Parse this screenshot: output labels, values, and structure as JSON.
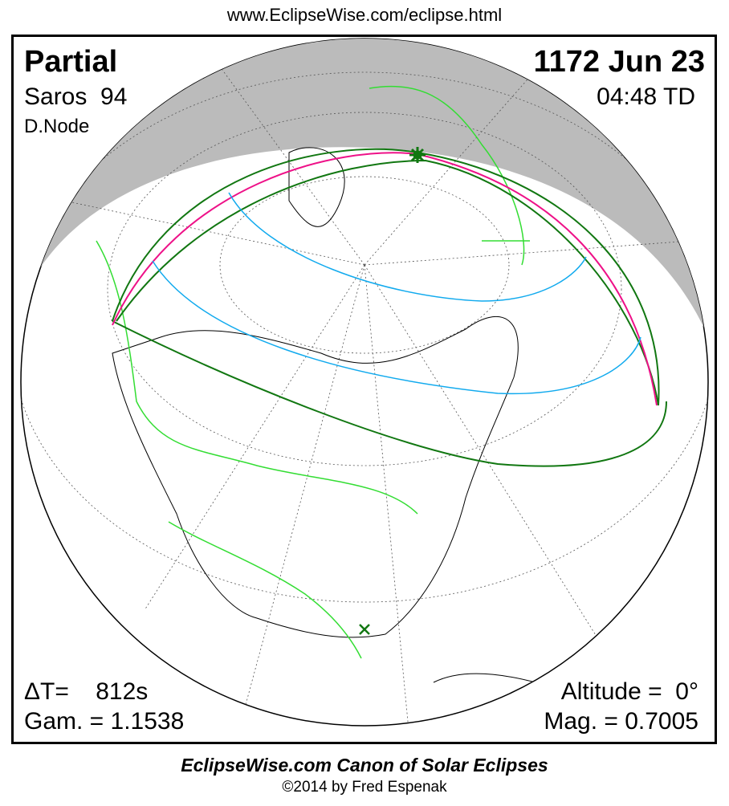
{
  "header": {
    "url": "www.EclipseWise.com/eclipse.html"
  },
  "eclipse": {
    "type": "Partial",
    "date": "1172 Jun 23",
    "saros": "Saros  94",
    "time": "04:48 TD",
    "node": "D.Node",
    "delta_t": "ΔT=    812s",
    "gamma": "Gam. = 1.1538",
    "altitude": "Altitude =  0°",
    "magnitude": "Mag. = 0.7005"
  },
  "footer": {
    "canon": "EclipseWise.com Canon of Solar Eclipses",
    "copyright": "©2014 by Fred Espenak"
  },
  "colors": {
    "night_shade": "#bbbbbb",
    "borders": "#33dd33",
    "penumbra_limits": "#117711",
    "max_eclipse_curve": "#ee1188",
    "magnitude_curves": "#11aaee",
    "coastlines": "#000000"
  }
}
